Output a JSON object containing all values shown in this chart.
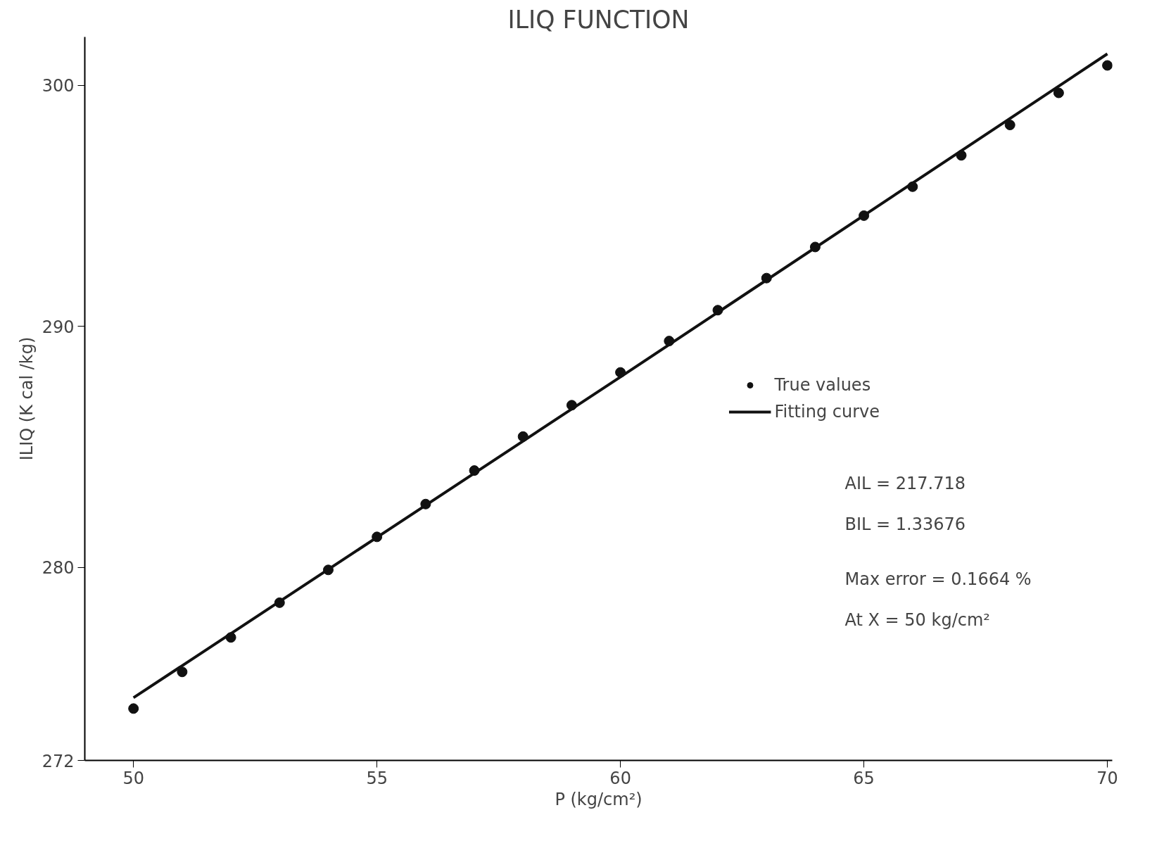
{
  "chart_data": {
    "type": "scatter",
    "title": "ILIQ FUNCTION",
    "xlabel": "P (kg/cm²)",
    "ylabel": "ILIQ (K cal /kg)",
    "x": [
      50,
      51,
      52,
      53,
      54,
      55,
      56,
      57,
      58,
      59,
      60,
      61,
      62,
      63,
      64,
      65,
      66,
      67,
      68,
      69,
      70
    ],
    "series": [
      {
        "name": "True values",
        "type": "scatter",
        "color": "#111111",
        "marker": "circle",
        "values": [
          274.15,
          275.67,
          277.1,
          278.54,
          279.9,
          281.27,
          282.63,
          284.02,
          285.43,
          286.73,
          288.09,
          289.39,
          290.67,
          292.0,
          293.29,
          294.59,
          295.79,
          297.09,
          298.35,
          299.68,
          300.82
        ]
      },
      {
        "name": "Fitting curve",
        "type": "line",
        "color": "#111111",
        "marker": "none",
        "line_style": "solid",
        "x": [
          50,
          60,
          70
        ],
        "values": [
          274.6,
          287.9,
          301.3
        ]
      }
    ],
    "annotations": [
      "AIL = 217.718",
      "BIL = 1.33676",
      "Max error = 0.1664 %",
      "At X = 50 kg/cm²"
    ],
    "xlim": [
      49,
      70.1
    ],
    "ylim": [
      272,
      302
    ],
    "xticks": [
      50,
      55,
      60,
      65,
      70
    ],
    "yticks": [
      272,
      280,
      290,
      300
    ],
    "grid": false,
    "legend": "right"
  }
}
